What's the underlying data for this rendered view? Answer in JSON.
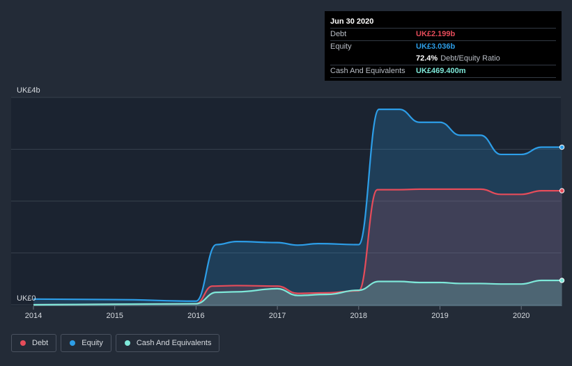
{
  "tooltip": {
    "date": "Jun 30 2020",
    "rows": [
      {
        "label": "Debt",
        "value": "UK£2.199b",
        "color": "#e64c5a"
      },
      {
        "label": "Equity",
        "value": "UK£3.036b",
        "color": "#2d9ee8"
      },
      {
        "label": "",
        "value": "72.4%",
        "note": "Debt/Equity Ratio",
        "color": "#ffffff"
      },
      {
        "label": "Cash And Equivalents",
        "value": "UK£469.400m",
        "color": "#7ee8d9"
      }
    ]
  },
  "chart_data": {
    "type": "area",
    "title": "",
    "xlabel": "",
    "ylabel": "",
    "y_top_label": "UK£4b",
    "y_bottom_label": "UK£0",
    "ylim": [
      0,
      4
    ],
    "xlim": [
      2014,
      2020.5
    ],
    "x_ticks": [
      "2014",
      "2015",
      "2016",
      "2017",
      "2018",
      "2019",
      "2020"
    ],
    "grid": true,
    "legend_position": "bottom-left",
    "series": [
      {
        "name": "Debt",
        "color": "#e64c5a",
        "x": [
          2014,
          2016.0,
          2016.2,
          2016.5,
          2017.0,
          2017.25,
          2017.6,
          2018.0,
          2018.23,
          2018.5,
          2018.75,
          2019.0,
          2019.25,
          2019.5,
          2019.75,
          2020.0,
          2020.25,
          2020.5
        ],
        "y": [
          0.0,
          0.02,
          0.36,
          0.37,
          0.36,
          0.22,
          0.23,
          0.27,
          2.22,
          2.22,
          2.23,
          2.23,
          2.23,
          2.23,
          2.13,
          2.13,
          2.2,
          2.2
        ]
      },
      {
        "name": "Equity",
        "color": "#2d9ee8",
        "x": [
          2014,
          2015.0,
          2016.0,
          2016.25,
          2016.5,
          2017.0,
          2017.25,
          2017.5,
          2018.0,
          2018.25,
          2018.5,
          2018.75,
          2019.0,
          2019.25,
          2019.5,
          2019.75,
          2020.0,
          2020.25,
          2020.5
        ],
        "y": [
          0.11,
          0.1,
          0.07,
          1.16,
          1.22,
          1.2,
          1.15,
          1.18,
          1.16,
          3.77,
          3.77,
          3.52,
          3.52,
          3.27,
          3.27,
          2.9,
          2.9,
          3.04,
          3.04
        ]
      },
      {
        "name": "Cash And Equivalents",
        "color": "#7ee8d9",
        "x": [
          2014,
          2016.0,
          2016.25,
          2016.5,
          2017.0,
          2017.25,
          2017.6,
          2018.0,
          2018.25,
          2018.5,
          2018.75,
          2019.0,
          2019.25,
          2019.5,
          2019.75,
          2020.0,
          2020.25,
          2020.5
        ],
        "y": [
          0.0,
          0.02,
          0.24,
          0.25,
          0.31,
          0.18,
          0.2,
          0.28,
          0.45,
          0.45,
          0.43,
          0.43,
          0.41,
          0.41,
          0.4,
          0.4,
          0.47,
          0.47
        ]
      }
    ]
  }
}
